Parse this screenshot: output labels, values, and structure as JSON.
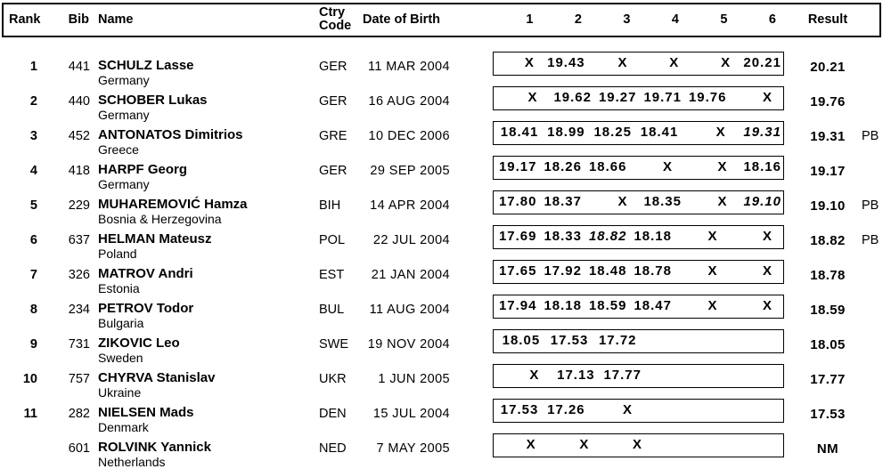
{
  "page": {
    "background": "#ffffff",
    "text_color": "#000000",
    "border_color": "#000000"
  },
  "table": {
    "headers": {
      "rank": "Rank",
      "bib": "Bib",
      "name": "Name",
      "ctry_line1": "Ctry",
      "ctry_line2": "Code",
      "dob": "Date of Birth",
      "attempts": [
        "1",
        "2",
        "3",
        "4",
        "5",
        "6"
      ],
      "result": "Result"
    },
    "rows": [
      {
        "rank": "1",
        "bib": "441",
        "name": "SCHULZ Lasse",
        "country": "Germany",
        "ctry": "GER",
        "dob": "11 MAR 2004",
        "attempts": [
          {
            "v": "X"
          },
          {
            "v": "19.43"
          },
          {
            "v": "X"
          },
          {
            "v": "X"
          },
          {
            "v": "X"
          },
          {
            "v": "20.21"
          }
        ],
        "result": "20.21",
        "note": ""
      },
      {
        "rank": "2",
        "bib": "440",
        "name": "SCHOBER Lukas",
        "country": "Germany",
        "ctry": "GER",
        "dob": "16 AUG 2004",
        "attempts": [
          {
            "v": "X"
          },
          {
            "v": "19.62"
          },
          {
            "v": "19.27"
          },
          {
            "v": "19.71"
          },
          {
            "v": "19.76"
          },
          {
            "v": "X"
          }
        ],
        "result": "19.76",
        "note": ""
      },
      {
        "rank": "3",
        "bib": "452",
        "name": "ANTONATOS Dimitrios",
        "country": "Greece",
        "ctry": "GRE",
        "dob": "10 DEC 2006",
        "attempts": [
          {
            "v": "18.41"
          },
          {
            "v": "18.99"
          },
          {
            "v": "18.25"
          },
          {
            "v": "18.41"
          },
          {
            "v": "X"
          },
          {
            "v": "19.31",
            "italic": true
          }
        ],
        "result": "19.31",
        "note": "PB"
      },
      {
        "rank": "4",
        "bib": "418",
        "name": "HARPF Georg",
        "country": "Germany",
        "ctry": "GER",
        "dob": "29 SEP 2005",
        "attempts": [
          {
            "v": "19.17"
          },
          {
            "v": "18.26"
          },
          {
            "v": "18.66"
          },
          {
            "v": "X"
          },
          {
            "v": "X"
          },
          {
            "v": "18.16"
          }
        ],
        "result": "19.17",
        "note": ""
      },
      {
        "rank": "5",
        "bib": "229",
        "name": "MUHAREMOVIĆ Hamza",
        "country": "Bosnia & Herzegovina",
        "ctry": "BIH",
        "dob": "14 APR 2004",
        "attempts": [
          {
            "v": "17.80"
          },
          {
            "v": "18.37"
          },
          {
            "v": "X"
          },
          {
            "v": "18.35"
          },
          {
            "v": "X"
          },
          {
            "v": "19.10",
            "italic": true
          }
        ],
        "result": "19.10",
        "note": "PB"
      },
      {
        "rank": "6",
        "bib": "637",
        "name": "HELMAN Mateusz",
        "country": "Poland",
        "ctry": "POL",
        "dob": "22 JUL 2004",
        "attempts": [
          {
            "v": "17.69"
          },
          {
            "v": "18.33"
          },
          {
            "v": "18.82",
            "italic": true
          },
          {
            "v": "18.18"
          },
          {
            "v": "X"
          },
          {
            "v": "X"
          }
        ],
        "result": "18.82",
        "note": "PB"
      },
      {
        "rank": "7",
        "bib": "326",
        "name": "MATROV Andri",
        "country": "Estonia",
        "ctry": "EST",
        "dob": "21 JAN 2004",
        "attempts": [
          {
            "v": "17.65"
          },
          {
            "v": "17.92"
          },
          {
            "v": "18.48"
          },
          {
            "v": "18.78"
          },
          {
            "v": "X"
          },
          {
            "v": "X"
          }
        ],
        "result": "18.78",
        "note": ""
      },
      {
        "rank": "8",
        "bib": "234",
        "name": "PETROV Todor",
        "country": "Bulgaria",
        "ctry": "BUL",
        "dob": "11 AUG 2004",
        "attempts": [
          {
            "v": "17.94"
          },
          {
            "v": "18.18"
          },
          {
            "v": "18.59"
          },
          {
            "v": "18.47"
          },
          {
            "v": "X"
          },
          {
            "v": "X"
          }
        ],
        "result": "18.59",
        "note": ""
      },
      {
        "rank": "9",
        "bib": "731",
        "name": "ZIKOVIC Leo",
        "country": "Sweden",
        "ctry": "SWE",
        "dob": "19 NOV 2004",
        "attempts": [
          {
            "v": "18.05"
          },
          {
            "v": "17.53"
          },
          {
            "v": "17.72"
          },
          {
            "v": ""
          },
          {
            "v": ""
          },
          {
            "v": ""
          }
        ],
        "result": "18.05",
        "note": ""
      },
      {
        "rank": "10",
        "bib": "757",
        "name": "CHYRVA Stanislav",
        "country": "Ukraine",
        "ctry": "UKR",
        "dob": "1 JUN 2005",
        "attempts": [
          {
            "v": "X"
          },
          {
            "v": "17.13"
          },
          {
            "v": "17.77"
          },
          {
            "v": ""
          },
          {
            "v": ""
          },
          {
            "v": ""
          }
        ],
        "result": "17.77",
        "note": ""
      },
      {
        "rank": "11",
        "bib": "282",
        "name": "NIELSEN Mads",
        "country": "Denmark",
        "ctry": "DEN",
        "dob": "15 JUL 2004",
        "attempts": [
          {
            "v": "17.53"
          },
          {
            "v": "17.26"
          },
          {
            "v": "X"
          },
          {
            "v": ""
          },
          {
            "v": ""
          },
          {
            "v": ""
          }
        ],
        "result": "17.53",
        "note": ""
      },
      {
        "rank": "",
        "bib": "601",
        "name": "ROLVINK Yannick",
        "country": "Netherlands",
        "ctry": "NED",
        "dob": "7 MAY 2005",
        "attempts": [
          {
            "v": "X"
          },
          {
            "v": "X"
          },
          {
            "v": "X"
          },
          {
            "v": ""
          },
          {
            "v": ""
          },
          {
            "v": ""
          }
        ],
        "result": "NM",
        "note": ""
      }
    ]
  }
}
